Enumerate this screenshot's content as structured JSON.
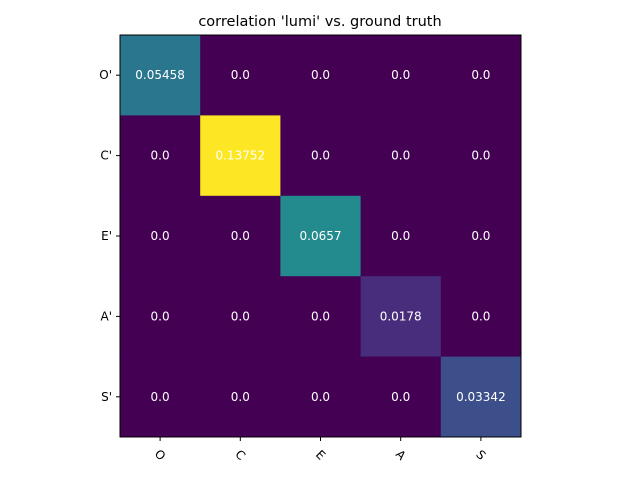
{
  "chart_data": {
    "type": "heatmap",
    "title": "correlation 'lumi' vs. ground truth",
    "x_categories": [
      "O",
      "C",
      "E",
      "A",
      "S"
    ],
    "y_categories": [
      "O'",
      "C'",
      "E'",
      "A'",
      "S'"
    ],
    "values": [
      [
        0.05458,
        0.0,
        0.0,
        0.0,
        0.0
      ],
      [
        0.0,
        0.13752,
        0.0,
        0.0,
        0.0
      ],
      [
        0.0,
        0.0,
        0.0657,
        0.0,
        0.0
      ],
      [
        0.0,
        0.0,
        0.0,
        0.0178,
        0.0
      ],
      [
        0.0,
        0.0,
        0.0,
        0.0,
        0.03342
      ]
    ],
    "value_labels": [
      [
        "0.05458",
        "0.0",
        "0.0",
        "0.0",
        "0.0"
      ],
      [
        "0.0",
        "0.13752",
        "0.0",
        "0.0",
        "0.0"
      ],
      [
        "0.0",
        "0.0",
        "0.0657",
        "0.0",
        "0.0"
      ],
      [
        "0.0",
        "0.0",
        "0.0",
        "0.0178",
        "0.0"
      ],
      [
        "0.0",
        "0.0",
        "0.0",
        "0.0",
        "0.03342"
      ]
    ],
    "colormap": "viridis",
    "color_range": [
      0.0,
      0.13752
    ],
    "x_tick_rotation_deg": 45,
    "grid": false,
    "legend": "none"
  }
}
